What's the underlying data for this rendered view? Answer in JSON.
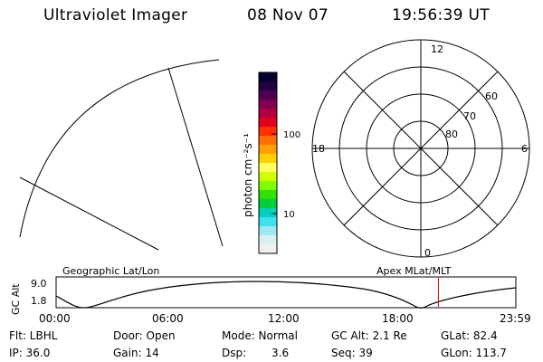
{
  "header": {
    "title": "Ultraviolet Imager",
    "date": "08 Nov 07",
    "time": "19:56:39 UT"
  },
  "colorbar": {
    "unit_label": "photon cm⁻²s⁻¹",
    "tick_labels": [
      "100",
      "10"
    ],
    "colors": [
      "#000030",
      "#200040",
      "#500050",
      "#800050",
      "#b00040",
      "#e00020",
      "#ff3000",
      "#ff7000",
      "#ffa000",
      "#ffd000",
      "#ffff60",
      "#d0ff00",
      "#80ff00",
      "#30e000",
      "#00d040",
      "#00d0c0",
      "#40e0f0",
      "#a0e8f0",
      "#d8f0f0",
      "#f0f0f0"
    ]
  },
  "polar_plot": {
    "mlt_labels": {
      "top": "12",
      "bottom": "0",
      "left": "18",
      "right": "6"
    },
    "lat_labels": [
      "60",
      "70",
      "80"
    ]
  },
  "timeline": {
    "title_left": "Geographic Lat/Lon",
    "title_right": "Apex MLat/MLT",
    "ylabel": "GC Alt",
    "yticks": [
      "9.0",
      "1.8"
    ],
    "xticks": [
      "00:00",
      "06:00",
      "12:00",
      "18:00",
      "23:59"
    ],
    "current_marker_hour": 19.94
  },
  "status": {
    "flt": "Flt: LBHL",
    "ip": "IP: 36.0",
    "door": "Door: Open",
    "gain": "Gain: 14",
    "mode": "Mode: Normal",
    "dsp_label": "Dsp:",
    "dsp_value": "3.6",
    "gc_alt": "GC Alt: 2.1 Re",
    "seq": "Seq: 39",
    "glat": "GLat:  82.4",
    "glon": "GLon: 113.7"
  }
}
